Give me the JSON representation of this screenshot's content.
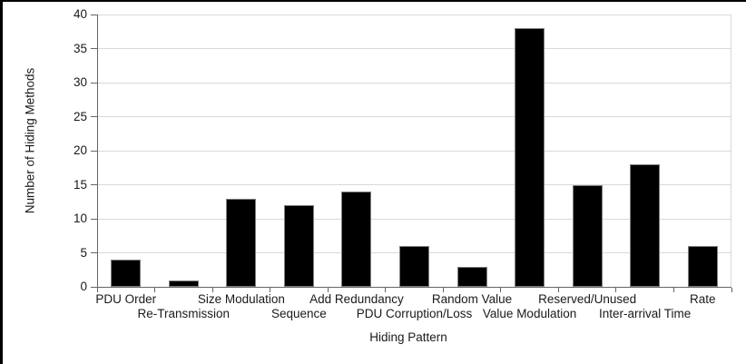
{
  "page": {
    "background_color": "#ffffff",
    "border_top_color": "#000000",
    "border_left_color": "#000000"
  },
  "chart_data": {
    "type": "bar",
    "title": "",
    "xlabel": "Hiding Pattern",
    "ylabel": "Number of Hiding Methods",
    "categories": [
      "PDU Order",
      "Re-Transmission",
      "Size Modulation",
      "Sequence",
      "Add Redundancy",
      "PDU Corruption/Loss",
      "Random Value",
      "Value Modulation",
      "Reserved/Unused",
      "Inter-arrival Time",
      "Rate"
    ],
    "values": [
      4,
      1,
      13,
      12,
      14,
      6,
      3,
      38,
      15,
      18,
      6
    ],
    "ylim": [
      0,
      40
    ],
    "yticks": [
      0,
      5,
      10,
      15,
      20,
      25,
      30,
      35,
      40
    ],
    "grid": "horizontal gridlines on, vertical off",
    "legend_position": "none",
    "x_label_layout": "staggered-two-rows",
    "bar_fill_color": "#000000",
    "bar_border_color": "#7f7f7f",
    "gridline_color": "#d9d9d9",
    "axis_line_color": "#666666",
    "text_color": "#1a1a1a"
  }
}
